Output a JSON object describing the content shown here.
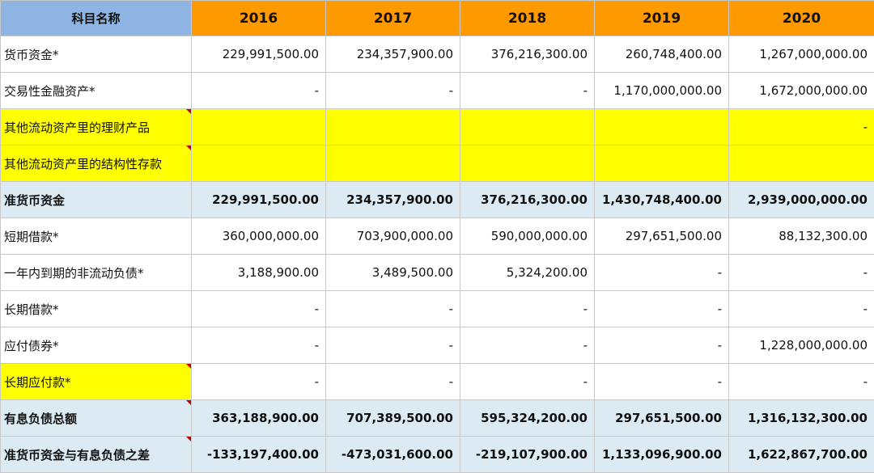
{
  "header": {
    "label": "科目名称",
    "years": [
      "2016",
      "2017",
      "2018",
      "2019",
      "2020"
    ]
  },
  "rows": [
    {
      "label": "货币资金*",
      "values": [
        "229,991,500.00",
        "234,357,900.00",
        "376,216,300.00",
        "260,748,400.00",
        "1,267,000,000.00"
      ]
    },
    {
      "label": "交易性金融资产*",
      "values": [
        "-",
        "-",
        "-",
        "1,170,000,000.00",
        "1,672,000,000.00"
      ]
    },
    {
      "label": "其他流动资产里的理财产品",
      "values": [
        "",
        "",
        "",
        "",
        "-"
      ]
    },
    {
      "label": "其他流动资产里的结构性存款",
      "values": [
        "",
        "",
        "",
        "",
        ""
      ]
    },
    {
      "label": "准货币资金",
      "values": [
        "229,991,500.00",
        "234,357,900.00",
        "376,216,300.00",
        "1,430,748,400.00",
        "2,939,000,000.00"
      ]
    },
    {
      "label": "短期借款*",
      "values": [
        "360,000,000.00",
        "703,900,000.00",
        "590,000,000.00",
        "297,651,500.00",
        "88,132,300.00"
      ]
    },
    {
      "label": "一年内到期的非流动负债*",
      "values": [
        "3,188,900.00",
        "3,489,500.00",
        "5,324,200.00",
        "-",
        "-"
      ]
    },
    {
      "label": "长期借款*",
      "values": [
        "-",
        "-",
        "-",
        "-",
        "-"
      ]
    },
    {
      "label": "应付债券*",
      "values": [
        "-",
        "-",
        "-",
        "-",
        "1,228,000,000.00"
      ]
    },
    {
      "label": "长期应付款*",
      "values": [
        "-",
        "-",
        "-",
        "-",
        "-"
      ]
    },
    {
      "label": "有息负债总额",
      "values": [
        "363,188,900.00",
        "707,389,500.00",
        "595,324,200.00",
        "297,651,500.00",
        "1,316,132,300.00"
      ]
    },
    {
      "label": "准货币资金与有息负债之差",
      "values": [
        "-133,197,400.00",
        "-473,031,600.00",
        "-219,107,900.00",
        "1,133,096,900.00",
        "1,622,867,700.00"
      ]
    }
  ],
  "colors": {
    "header_year_bg": "#ff9900",
    "header_label_bg": "#8db4e2",
    "highlight_yellow": "#ffff00",
    "summary_row_bg": "#dcebf3",
    "comment_marker": "#c00000"
  }
}
